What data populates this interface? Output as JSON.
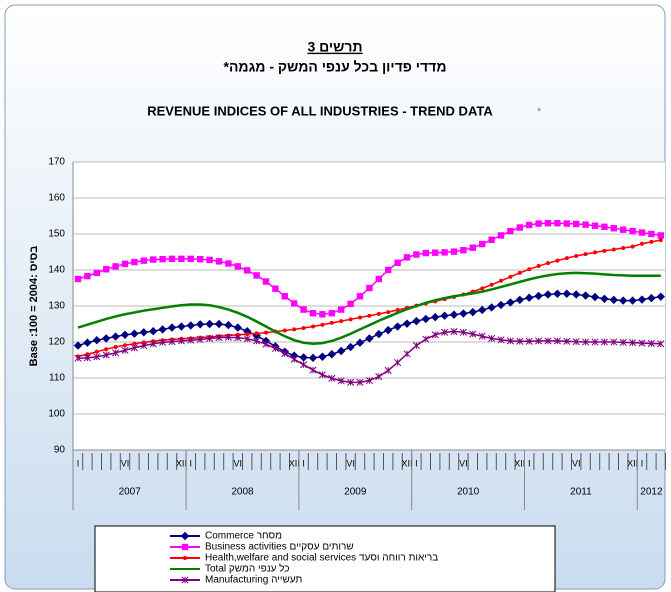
{
  "chart_data": {
    "type": "line",
    "chart_label": "תרשים 3",
    "title_hebrew": "מדדי פדיון בכל ענפי המשק - מגמה*",
    "title": "REVENUE INDICES OF ALL INDUSTRIES - TREND DATA",
    "title_note": "*",
    "y_label": "Base :100 = 2004: בסיס",
    "categories": [
      "I",
      null,
      null,
      null,
      null,
      "VI",
      null,
      null,
      null,
      null,
      null,
      "XII",
      "I",
      null,
      null,
      null,
      null,
      "VI",
      null,
      null,
      null,
      null,
      null,
      "XII",
      "I",
      null,
      null,
      null,
      null,
      "VI",
      null,
      null,
      null,
      null,
      null,
      "XII",
      "I",
      null,
      null,
      null,
      null,
      "VI",
      null,
      null,
      null,
      null,
      null,
      "XII",
      "I",
      null,
      null,
      null,
      null,
      "VI",
      null,
      null,
      null,
      null,
      null,
      "XII",
      "I",
      null,
      null
    ],
    "years": [
      "2007",
      "2008",
      "2009",
      "2010",
      "2011",
      "2012"
    ],
    "ylim": [
      90,
      170
    ],
    "yticks": [
      90,
      100,
      110,
      120,
      130,
      140,
      150,
      160,
      170
    ],
    "grid": true,
    "series": [
      {
        "name": "Commerce  מסחר",
        "color": "#000080",
        "marker": "diamond",
        "values": [
          119,
          119.8,
          120.5,
          121,
          121.5,
          122,
          122.3,
          122.7,
          123,
          123.5,
          124,
          124.3,
          124.6,
          124.9,
          125,
          125,
          124.7,
          124,
          123,
          121.8,
          120.3,
          118.8,
          117.3,
          116.2,
          115.7,
          115.6,
          115.9,
          116.6,
          117.5,
          118.6,
          119.8,
          121,
          122.2,
          123.3,
          124.3,
          125.1,
          125.8,
          126.4,
          126.9,
          127.3,
          127.6,
          127.9,
          128.3,
          128.9,
          129.6,
          130.3,
          131,
          131.7,
          132.3,
          132.8,
          133.2,
          133.4,
          133.4,
          133.2,
          132.9,
          132.5,
          132,
          131.7,
          131.5,
          131.5,
          131.8,
          132.2,
          132.6
        ]
      },
      {
        "name": "Business activities  שרותים עסקיים",
        "color": "#ff00ff",
        "marker": "square",
        "values": [
          137.5,
          138.3,
          139.2,
          140.2,
          141,
          141.7,
          142.2,
          142.6,
          142.9,
          143,
          143.1,
          143.1,
          143.1,
          143,
          142.8,
          142.4,
          141.8,
          141,
          139.9,
          138.5,
          136.8,
          134.8,
          132.7,
          130.7,
          129,
          128,
          127.7,
          128,
          129,
          130.6,
          132.7,
          135,
          137.5,
          140,
          142,
          143.5,
          144.3,
          144.7,
          144.8,
          144.9,
          145.1,
          145.5,
          146.2,
          147.2,
          148.4,
          149.6,
          150.8,
          151.8,
          152.5,
          152.9,
          153,
          153,
          152.9,
          152.8,
          152.6,
          152.3,
          152,
          151.6,
          151.2,
          150.8,
          150.4,
          150,
          149.6
        ]
      },
      {
        "name": "Health,welfare and social services  בריאות רווחה וסעד",
        "color": "#ff0000",
        "marker": "circle",
        "values": [
          116,
          116.6,
          117.3,
          118,
          118.6,
          119.1,
          119.5,
          119.9,
          120.2,
          120.5,
          120.7,
          120.9,
          121,
          121.2,
          121.4,
          121.6,
          121.8,
          122,
          122.2,
          122.4,
          122.6,
          122.9,
          123.2,
          123.5,
          123.9,
          124.3,
          124.8,
          125.3,
          125.8,
          126.3,
          126.8,
          127.3,
          127.8,
          128.3,
          128.9,
          129.5,
          130.1,
          130.7,
          131.3,
          131.9,
          132.5,
          133.2,
          134,
          134.9,
          135.9,
          137,
          138.1,
          139.2,
          140.2,
          141.1,
          141.9,
          142.6,
          143.3,
          143.9,
          144.4,
          144.9,
          145.3,
          145.7,
          146.1,
          146.5,
          147.3,
          147.8,
          148.3
        ]
      },
      {
        "name": "Total  כל ענפי המשק",
        "color": "#008000",
        "marker": "none",
        "values": [
          124,
          124.8,
          125.6,
          126.4,
          127.1,
          127.7,
          128.2,
          128.7,
          129.1,
          129.5,
          129.9,
          130.2,
          130.4,
          130.4,
          130.2,
          129.7,
          129,
          128.1,
          127,
          125.7,
          124.3,
          122.9,
          121.6,
          120.5,
          119.8,
          119.5,
          119.7,
          120.3,
          121.2,
          122.3,
          123.5,
          124.7,
          125.9,
          127,
          128.1,
          129.1,
          130,
          130.9,
          131.6,
          132.2,
          132.7,
          133.1,
          133.5,
          134,
          134.6,
          135.3,
          136,
          136.7,
          137.4,
          138,
          138.5,
          138.9,
          139.1,
          139.2,
          139.1,
          139,
          138.8,
          138.6,
          138.5,
          138.4,
          138.4,
          138.4,
          138.4
        ]
      },
      {
        "name": "Manufacturing  תעשייה",
        "color": "#800080",
        "marker": "star",
        "values": [
          115.5,
          115.6,
          115.9,
          116.4,
          117,
          117.7,
          118.4,
          119,
          119.5,
          119.9,
          120.1,
          120.3,
          120.5,
          120.7,
          121,
          121.2,
          121.3,
          121.2,
          120.9,
          120.3,
          119.4,
          118.2,
          116.8,
          115.2,
          113.7,
          112.2,
          110.9,
          109.9,
          109.2,
          108.8,
          108.8,
          109.3,
          110.4,
          112.1,
          114.3,
          116.7,
          119,
          120.8,
          122,
          122.7,
          122.9,
          122.7,
          122.2,
          121.6,
          121,
          120.6,
          120.3,
          120.2,
          120.2,
          120.3,
          120.3,
          120.3,
          120.2,
          120.1,
          120,
          120,
          120,
          120,
          119.9,
          119.8,
          119.7,
          119.6,
          119.5
        ]
      }
    ]
  }
}
